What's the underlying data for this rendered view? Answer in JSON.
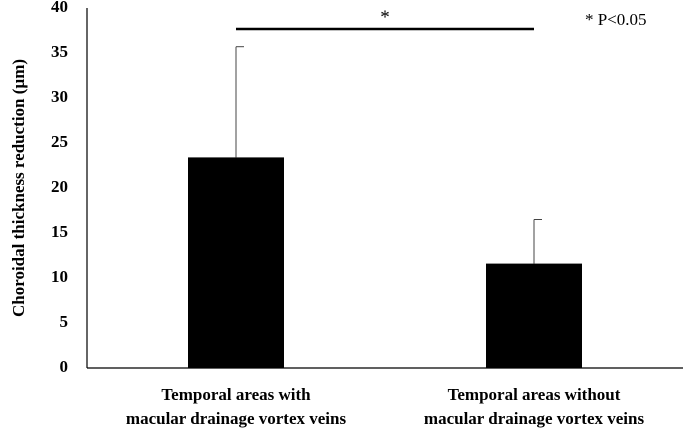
{
  "chart_data": {
    "type": "bar",
    "categories": [
      [
        "Temporal areas with",
        "macular drainage vortex veins"
      ],
      [
        "Temporal areas without",
        "macular drainage vortex veins"
      ]
    ],
    "values": [
      23.4,
      11.6
    ],
    "error_upper": [
      35.7,
      16.5
    ],
    "ylabel": "Choroidal thickness reduction (µm)",
    "xlabel": "",
    "ylim": [
      0,
      40
    ],
    "yticks": [
      0,
      5,
      10,
      15,
      20,
      25,
      30,
      35,
      40
    ],
    "grid": false,
    "bar_color": "#000000",
    "significance": {
      "between": [
        0,
        1
      ],
      "marker": "*"
    },
    "note": "* P<0.05"
  }
}
